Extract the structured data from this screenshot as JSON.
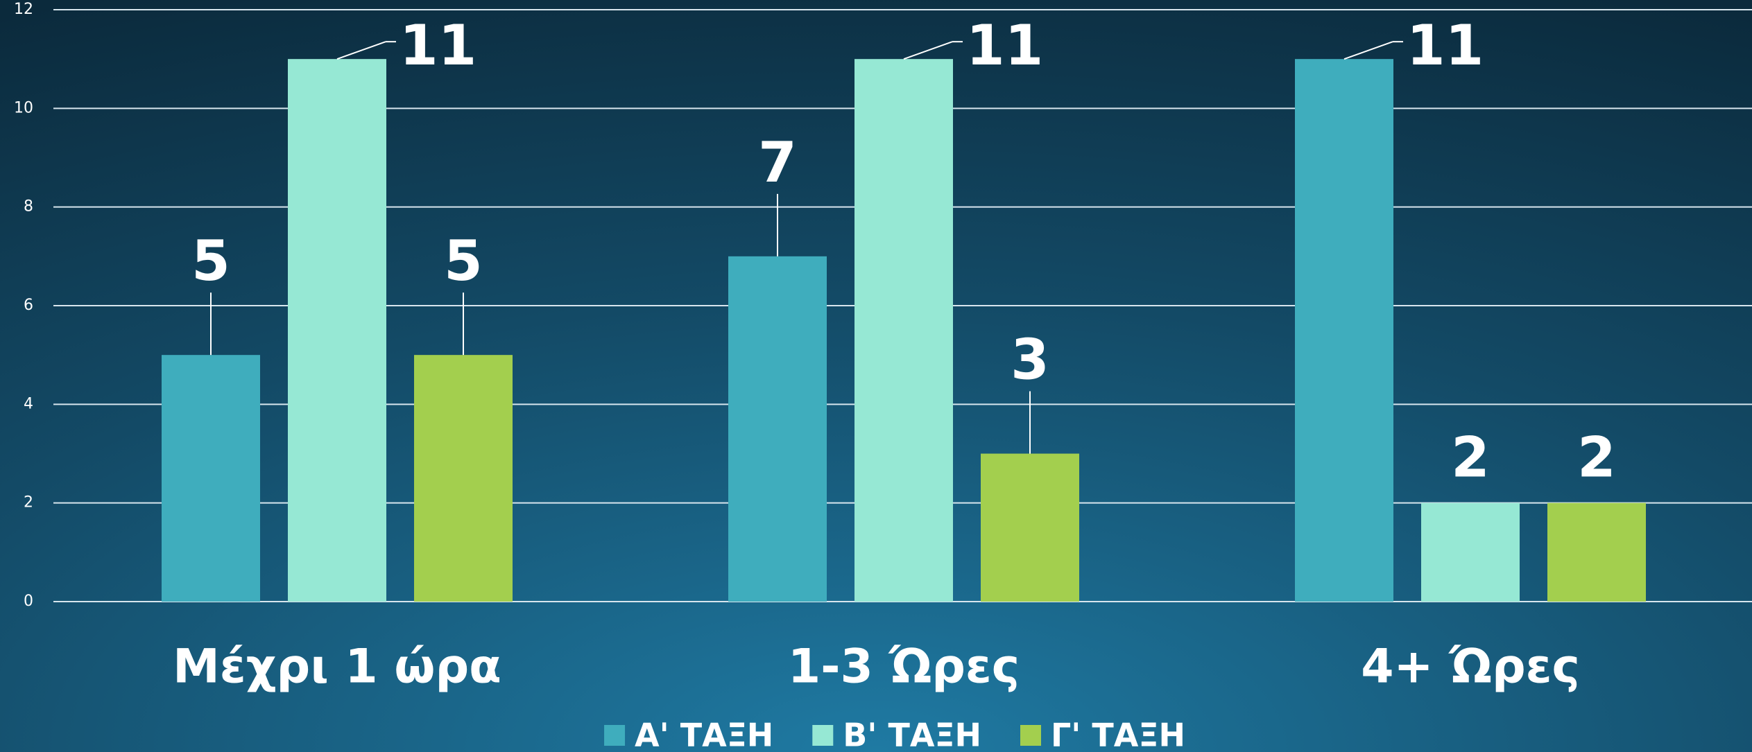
{
  "chart_data": {
    "type": "bar",
    "categories": [
      "Μέχρι 1 ώρα",
      "1-3 Ώρες",
      "4+ Ώρες"
    ],
    "series": [
      {
        "name": "Α' ΤΑΞΗ",
        "color": "#3fadbd",
        "values": [
          5,
          7,
          11
        ]
      },
      {
        "name": "Β' ΤΑΞΗ",
        "color": "#96e8d4",
        "values": [
          11,
          11,
          2
        ]
      },
      {
        "name": "Γ' ΤΑΞΗ",
        "color": "#a3cf4e",
        "values": [
          5,
          3,
          2
        ]
      }
    ],
    "ylim": [
      0,
      12
    ],
    "yticks": [
      0,
      2,
      4,
      6,
      8,
      10,
      12
    ],
    "grid": true,
    "legend": "bottom"
  }
}
